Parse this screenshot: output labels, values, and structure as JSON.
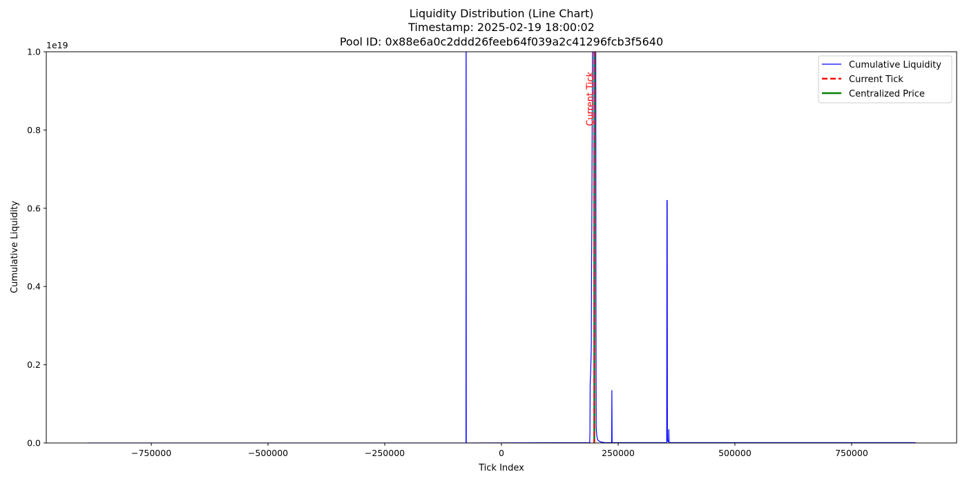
{
  "chart_data": {
    "type": "line",
    "title_lines": [
      "Liquidity Distribution (Line Chart)",
      "Timestamp: 2025-02-19 18:00:02",
      "Pool ID: 0x88e6a0c2ddd26feeb64f039a2c41296fcb3f5640"
    ],
    "xlabel": "Tick Index",
    "ylabel": "Cumulative Liquidity",
    "y_offset_label": "1e19",
    "xlim": [
      -975000,
      975000
    ],
    "ylim": [
      0,
      1.0
    ],
    "x_ticks": [
      -750000,
      -500000,
      -250000,
      0,
      250000,
      500000,
      750000
    ],
    "x_tick_labels": [
      "−750000",
      "−500000",
      "−250000",
      "0",
      "250000",
      "500000",
      "750000"
    ],
    "y_ticks": [
      0.0,
      0.2,
      0.4,
      0.6,
      0.8,
      1.0
    ],
    "y_tick_labels": [
      "0.0",
      "0.2",
      "0.4",
      "0.6",
      "0.8",
      "1.0"
    ],
    "grid": false,
    "legend_position": "top-right",
    "series": [
      {
        "name": "Cumulative Liquidity",
        "color": "#0000ff",
        "style": "solid",
        "x": [
          -887000,
          -76000,
          -75800,
          -75600,
          -75400,
          189000,
          189500,
          190000,
          191000,
          192000,
          192500,
          193000,
          193500,
          194000,
          194500,
          195000,
          195500,
          196000,
          196500,
          197000,
          197500,
          198000,
          198500,
          199000,
          199500,
          200000,
          200500,
          201000,
          201500,
          202000,
          202500,
          203000,
          204000,
          206000,
          210000,
          215000,
          222000,
          230000,
          236000,
          236500,
          237000,
          237500,
          238000,
          240000,
          354000,
          354500,
          355000,
          355500,
          356000,
          357000,
          358000,
          358500,
          359000,
          359500,
          360000,
          362000,
          887000
        ],
        "y": [
          0.0,
          0.0,
          1.0,
          1.0,
          0.0,
          0.001,
          0.02,
          0.15,
          0.18,
          0.22,
          0.25,
          0.45,
          0.55,
          0.7,
          0.85,
          1.0,
          1.0,
          1.0,
          1.0,
          1.0,
          1.0,
          1.0,
          1.0,
          1.0,
          1.0,
          1.0,
          1.0,
          1.0,
          1.0,
          1.0,
          0.3,
          0.04,
          0.02,
          0.008,
          0.004,
          0.002,
          0.001,
          0.001,
          0.001,
          0.135,
          0.002,
          0.001,
          0.001,
          0.001,
          0.001,
          0.62,
          0.62,
          0.01,
          0.005,
          0.004,
          0.003,
          0.035,
          0.003,
          0.002,
          0.001,
          0.001,
          0.001
        ]
      },
      {
        "name": "Current Tick",
        "color": "#ff0000",
        "style": "dashed",
        "x_value": 198600
      },
      {
        "name": "Centralized Price",
        "color": "#008000",
        "style": "solid",
        "x_value": 198900
      }
    ],
    "annotations": [
      {
        "text": "Current Tick",
        "x": 196000,
        "y": 0.81,
        "color": "#ff0000",
        "rotation": -90
      }
    ]
  }
}
